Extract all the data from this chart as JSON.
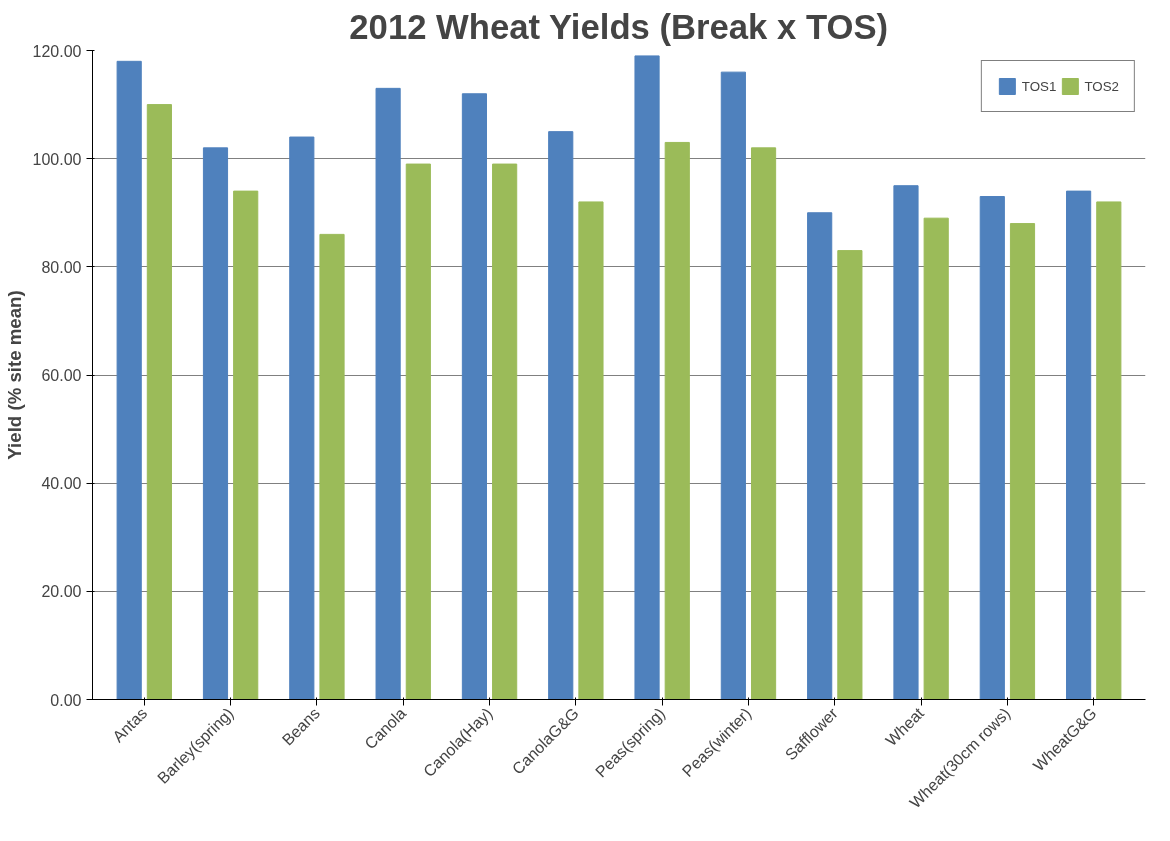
{
  "chart_data": {
    "type": "bar",
    "title": "2012 Wheat Yields (Break x TOS)",
    "ylabel": "Yield (% site mean)",
    "categories": [
      "Antas",
      "Barley(spring)",
      "Beans",
      "Canola",
      "Canola(Hay)",
      "CanolaG&G",
      "Peas(spring)",
      "Peas(winter)",
      "Safflower",
      "Wheat",
      "Wheat(30cm rows)",
      "WheatG&G"
    ],
    "series": [
      {
        "name": "TOS1",
        "color": "#4f81bd",
        "values": [
          118,
          102,
          104,
          113,
          112,
          105,
          119,
          116,
          90,
          95,
          93,
          94
        ]
      },
      {
        "name": "TOS2",
        "color": "#9bbb59",
        "values": [
          110,
          94,
          86,
          99,
          99,
          92,
          103,
          102,
          83,
          89,
          88,
          92
        ]
      }
    ],
    "ylim": [
      0,
      120
    ],
    "yticks": [
      {
        "value": 0,
        "label": "0.00"
      },
      {
        "value": 20,
        "label": "20.00"
      },
      {
        "value": 40,
        "label": "40.00"
      },
      {
        "value": 60,
        "label": "60.00"
      },
      {
        "value": 80,
        "label": "80.00"
      },
      {
        "value": 100,
        "label": "100.00"
      },
      {
        "value": 120,
        "label": "120.00"
      }
    ],
    "grid": "y",
    "legend": "top right"
  }
}
